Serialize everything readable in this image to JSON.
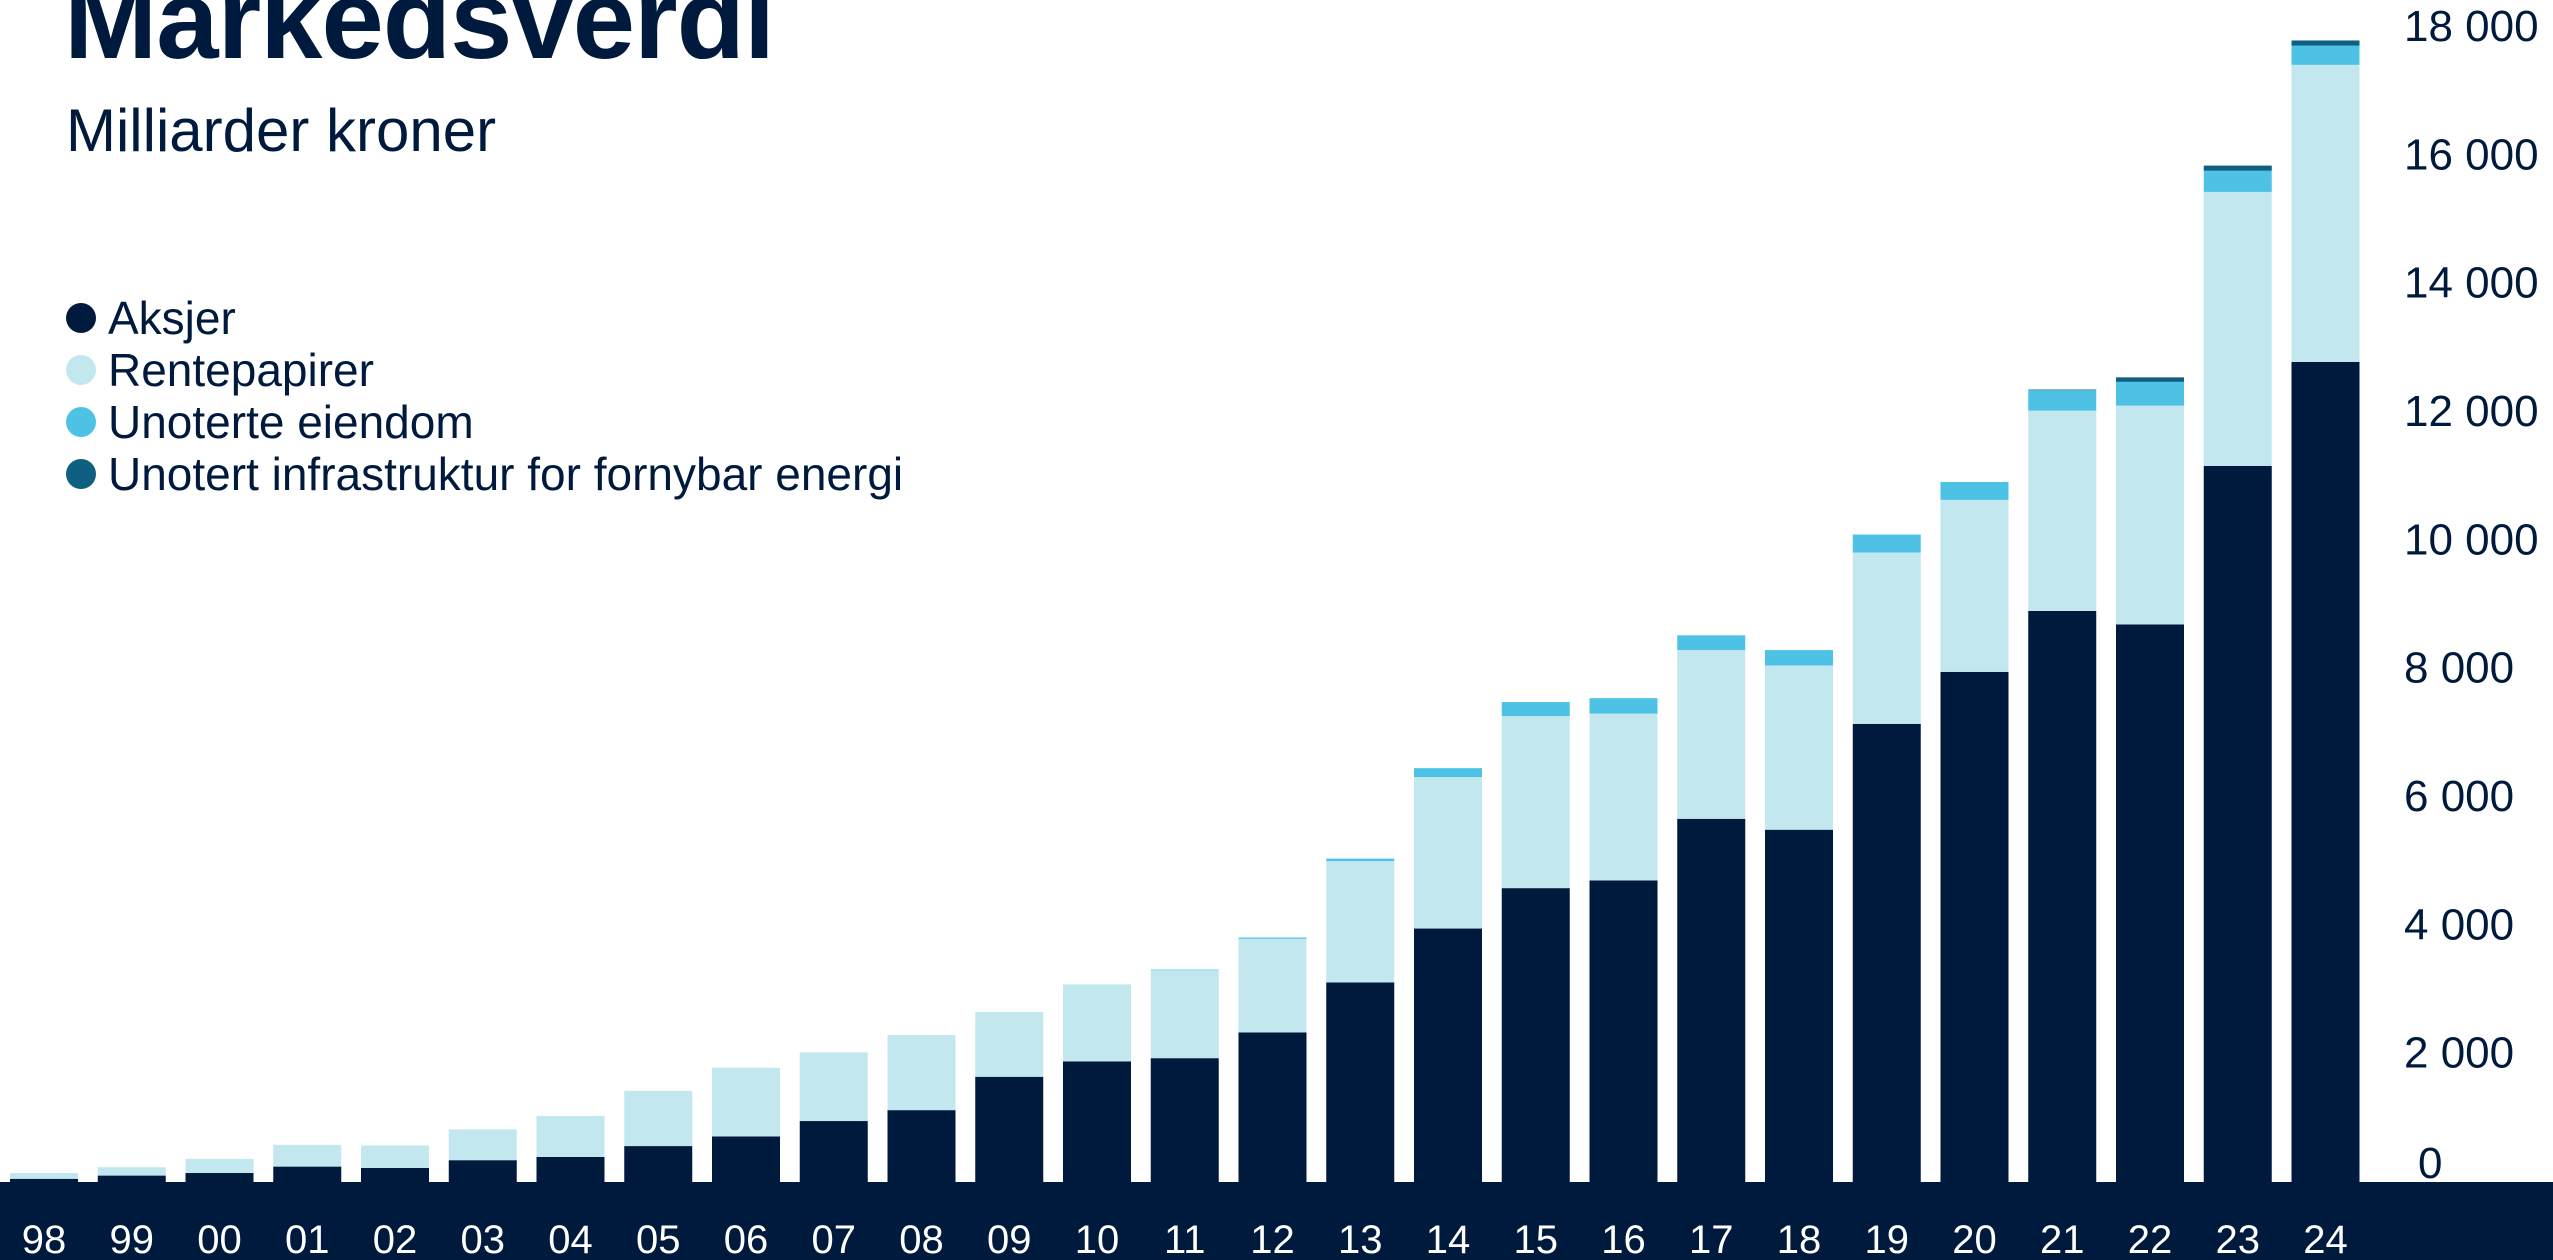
{
  "title": "Markedsverdi",
  "subtitle": "Milliarder kroner",
  "legend": [
    {
      "label": "Aksjer",
      "color": "#001a3d"
    },
    {
      "label": "Rentepapirer",
      "color": "#c3e7ee"
    },
    {
      "label": "Unoterte eiendom",
      "color": "#4ec2e5"
    },
    {
      "label": "Unotert infrastruktur for fornybar energi",
      "color": "#0e5f80"
    }
  ],
  "chart_data": {
    "type": "bar",
    "stacked": true,
    "categories": [
      "98",
      "99",
      "00",
      "01",
      "02",
      "03",
      "04",
      "05",
      "06",
      "07",
      "08",
      "09",
      "10",
      "11",
      "12",
      "13",
      "14",
      "15",
      "16",
      "17",
      "18",
      "19",
      "20",
      "21",
      "22",
      "23",
      "24"
    ],
    "series": [
      {
        "name": "Aksjer",
        "color": "#001a3d",
        "values": [
          50,
          100,
          140,
          240,
          220,
          340,
          390,
          560,
          710,
          950,
          1120,
          1640,
          1880,
          1930,
          2330,
          3110,
          3950,
          4580,
          4700,
          5660,
          5490,
          7140,
          7950,
          8900,
          8690,
          11160,
          12780
        ]
      },
      {
        "name": "Rentepapirer",
        "color": "#c3e7ee",
        "values": [
          90,
          130,
          220,
          340,
          350,
          480,
          640,
          860,
          1070,
          1070,
          1170,
          1010,
          1200,
          1370,
          1460,
          1890,
          2360,
          2680,
          2600,
          2630,
          2560,
          2670,
          2680,
          3120,
          3410,
          4270,
          4630
        ]
      },
      {
        "name": "Unoterte eiendom",
        "color": "#4ec2e5",
        "values": [
          0,
          0,
          0,
          0,
          0,
          0,
          0,
          0,
          0,
          0,
          0,
          0,
          0,
          10,
          20,
          40,
          140,
          220,
          240,
          230,
          240,
          280,
          280,
          320,
          370,
          330,
          300
        ]
      },
      {
        "name": "Unotert infrastruktur for fornybar energi",
        "color": "#0e5f80",
        "values": [
          0,
          0,
          0,
          0,
          0,
          0,
          0,
          0,
          0,
          0,
          0,
          0,
          0,
          0,
          0,
          0,
          0,
          0,
          0,
          0,
          0,
          0,
          0,
          10,
          70,
          80,
          80
        ]
      }
    ],
    "yticks": [
      "0",
      "2 000",
      "4 000",
      "6 000",
      "8 000",
      "10 000",
      "12 000",
      "14 000",
      "16 000",
      "18 000"
    ],
    "ylim": [
      0,
      18000
    ],
    "axis_band_color": "#001a3d",
    "legend_position": "top-left"
  }
}
